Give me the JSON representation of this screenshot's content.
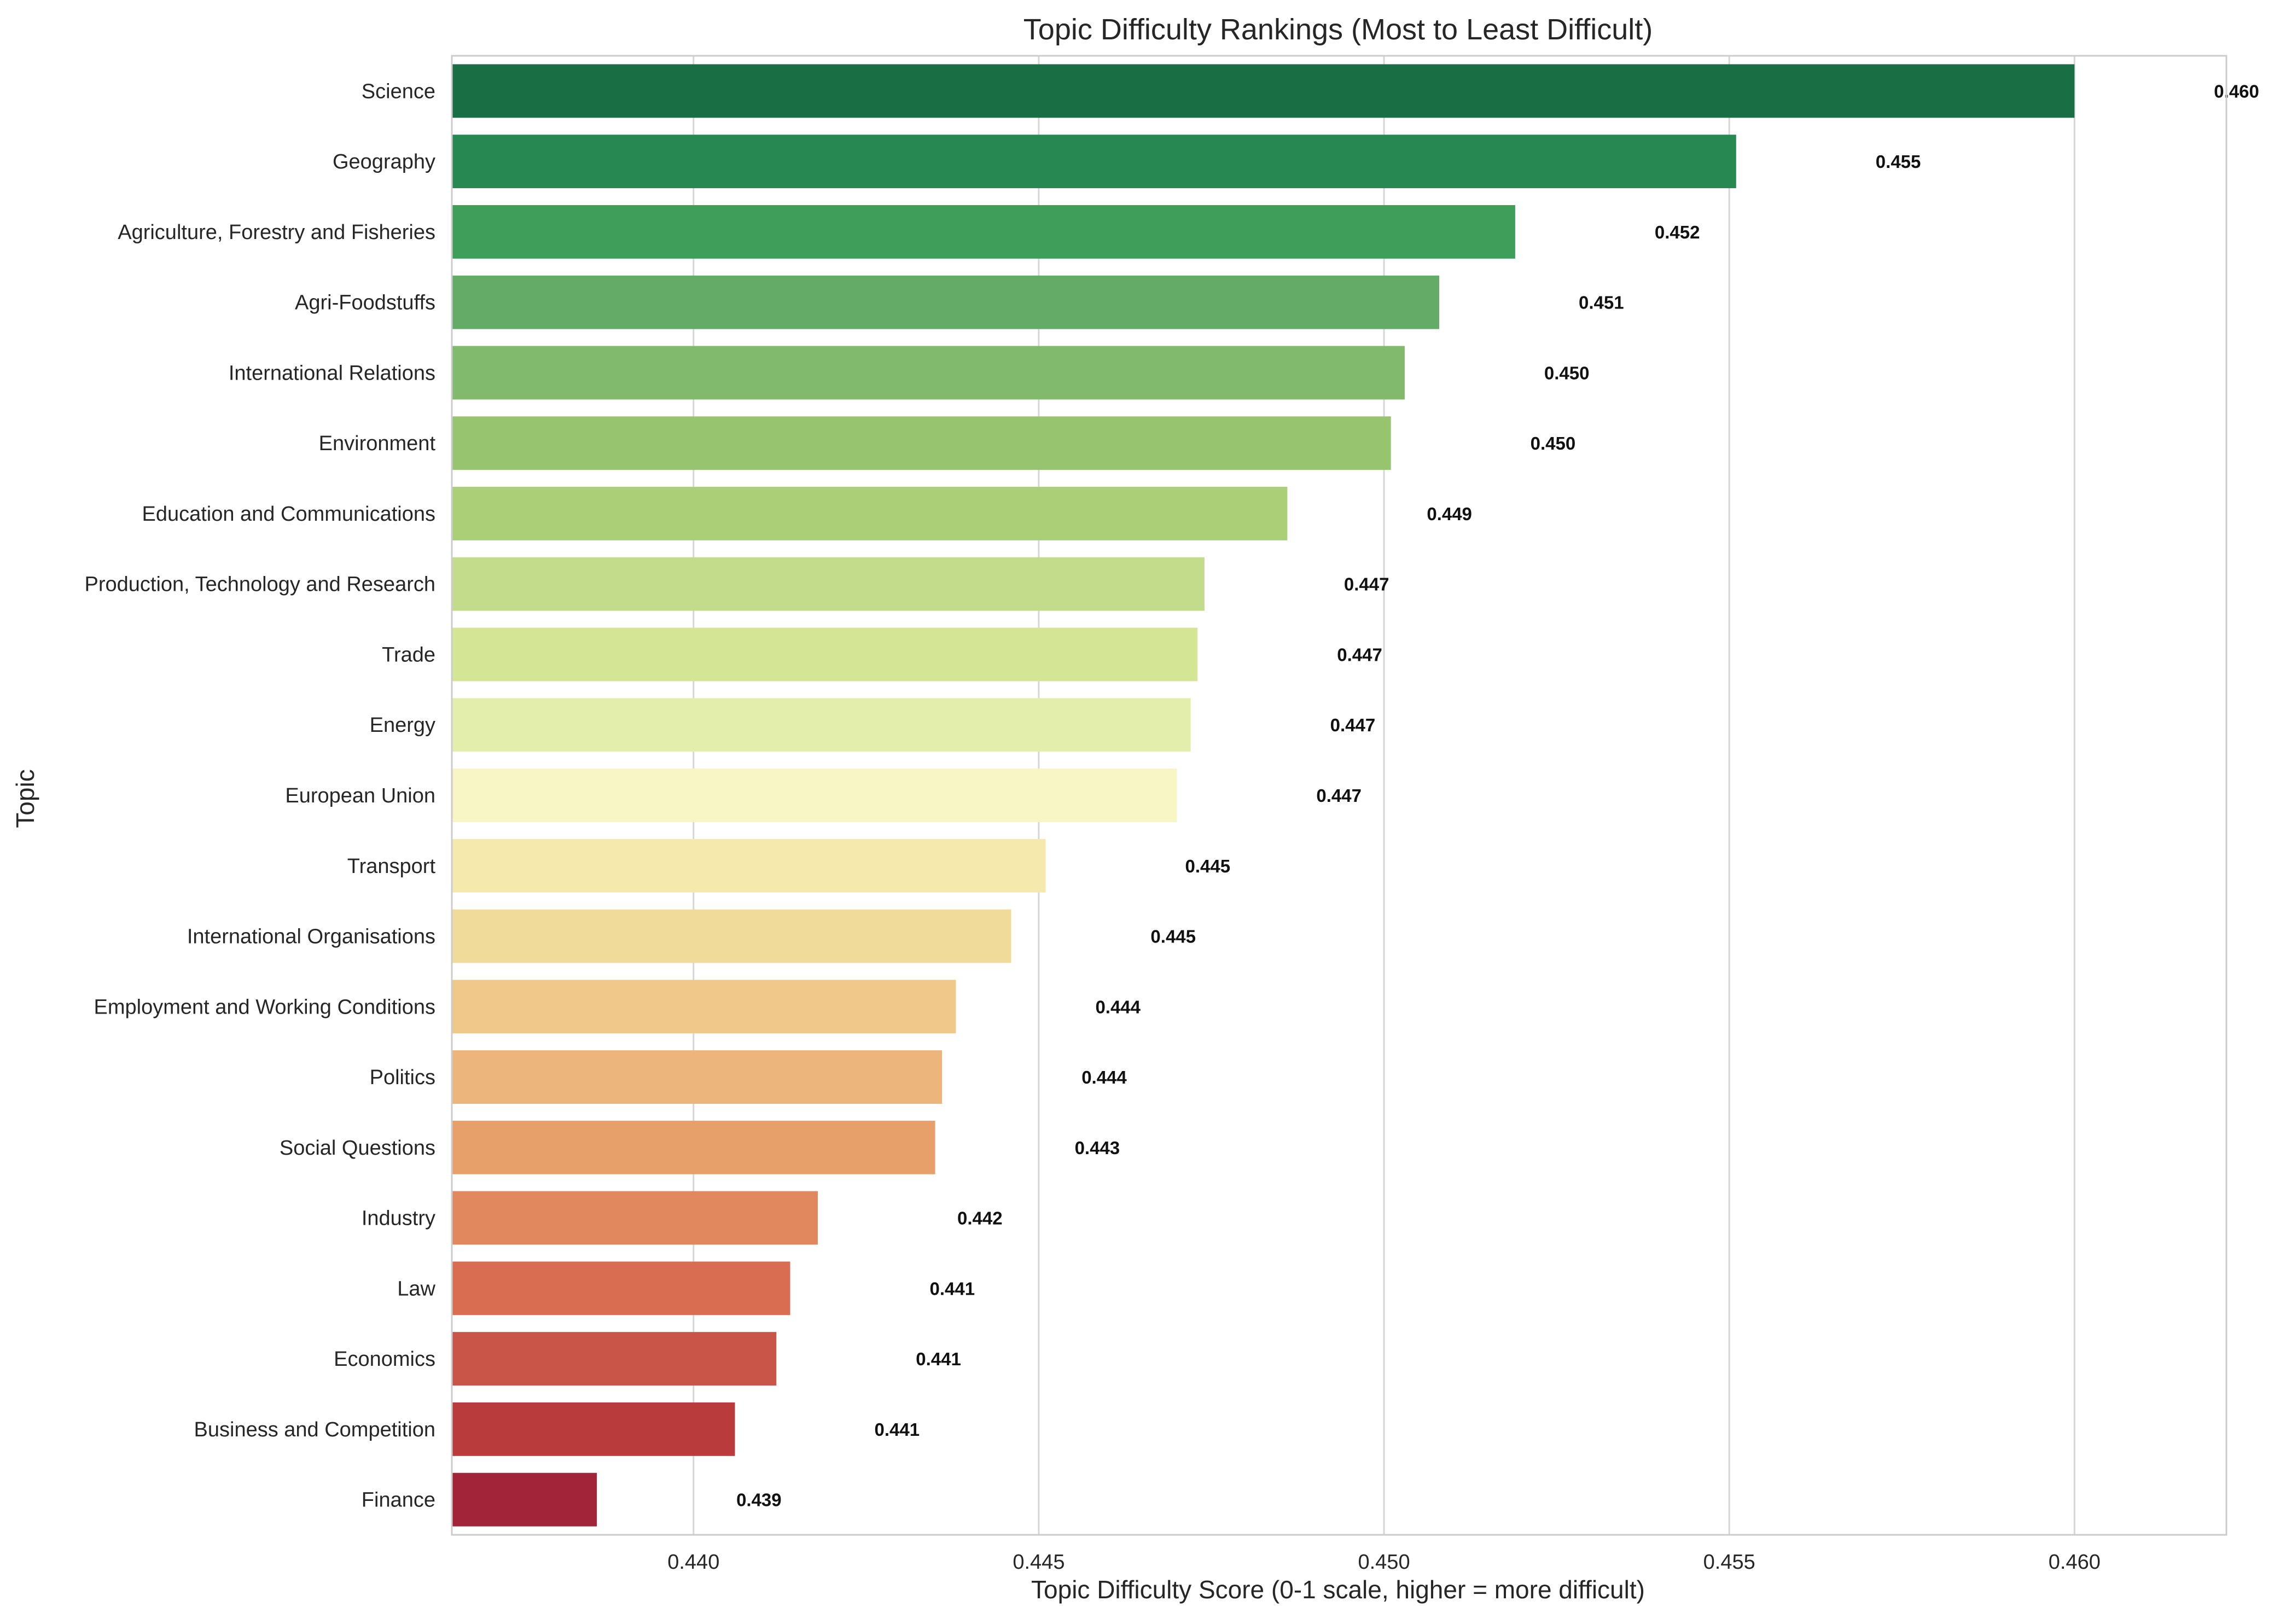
{
  "chart_data": {
    "type": "bar",
    "orientation": "horizontal",
    "title": "Topic Difficulty Rankings (Most to Least Difficult)",
    "xlabel": "Topic Difficulty Score (0-1 scale, higher = more difficult)",
    "ylabel": "Topic",
    "xlim": [
      0.4365,
      0.4622
    ],
    "xticks": [
      0.44,
      0.445,
      0.45,
      0.455,
      0.46
    ],
    "xtick_labels": [
      "0.440",
      "0.445",
      "0.450",
      "0.455",
      "0.460"
    ],
    "grid": true,
    "categories": [
      "Science",
      "Geography",
      "Agriculture, Forestry and Fisheries",
      "Agri-Foodstuffs",
      "International Relations",
      "Environment",
      "Education and Communications",
      "Production, Technology and Research",
      "Trade",
      "Energy",
      "European Union",
      "Transport",
      "International Organisations",
      "Employment and Working Conditions",
      "Politics",
      "Social Questions",
      "Industry",
      "Law",
      "Economics",
      "Business and Competition",
      "Finance"
    ],
    "values": [
      0.46,
      0.4551,
      0.4519,
      0.4508,
      0.4503,
      0.4501,
      0.4486,
      0.4474,
      0.4473,
      0.4472,
      0.447,
      0.4451,
      0.4446,
      0.4438,
      0.4436,
      0.4435,
      0.4418,
      0.4414,
      0.4412,
      0.4406,
      0.4386
    ],
    "value_labels": [
      "0.460",
      "0.455",
      "0.452",
      "0.451",
      "0.450",
      "0.450",
      "0.449",
      "0.447",
      "0.447",
      "0.447",
      "0.447",
      "0.445",
      "0.445",
      "0.444",
      "0.444",
      "0.443",
      "0.442",
      "0.441",
      "0.441",
      "0.441",
      "0.439"
    ],
    "colors": [
      "#1a6e44",
      "#288852",
      "#3f9e59",
      "#63ab67",
      "#82ba6d",
      "#97c56f",
      "#aacf77",
      "#c3dc8b",
      "#d5e596",
      "#e4eeac",
      "#f7f6c4",
      "#f5e9ae",
      "#f1db9a",
      "#f0c98a",
      "#ecb57c",
      "#e8a06b",
      "#e2885f",
      "#d86d52",
      "#c95448",
      "#b93b3b",
      "#a22439"
    ]
  }
}
